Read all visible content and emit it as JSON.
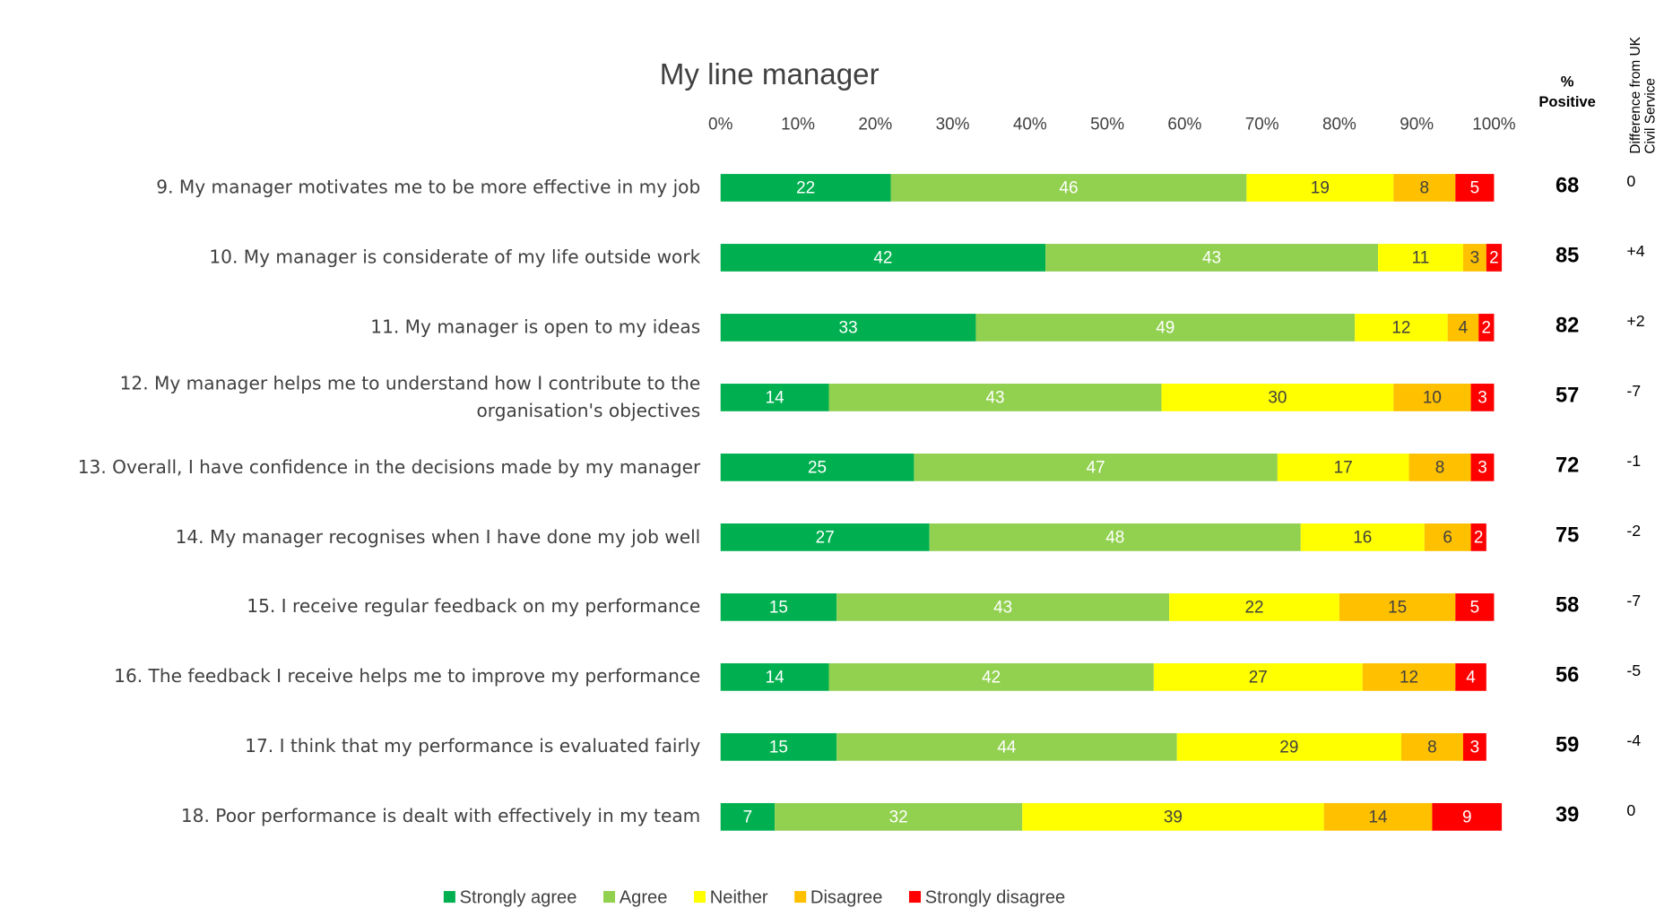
{
  "chart_data": {
    "type": "stacked_bar_horizontal",
    "title": "My line manager",
    "categories": [
      "9. My manager motivates me to be more effective in my job",
      "10. My manager is considerate of my life outside work",
      "11. My manager is open to my ideas",
      "12. My manager helps me to understand how I contribute to the organisation's objectives",
      "13. Overall, I have confidence in the decisions made by my manager",
      "14. My manager recognises when I have done my job well",
      "15. I receive regular feedback on my performance",
      "16. The feedback I receive helps me to improve my performance",
      "17. I think that my performance is evaluated fairly",
      "18. Poor performance is dealt with effectively in my team"
    ],
    "series": [
      {
        "name": "Strongly agree",
        "color": "#00b050",
        "label_color": "#ffffff",
        "values": [
          22,
          42,
          33,
          14,
          25,
          27,
          15,
          14,
          15,
          7
        ]
      },
      {
        "name": "Agree",
        "color": "#92d050",
        "label_color": "#ffffff",
        "values": [
          46,
          43,
          49,
          43,
          47,
          48,
          43,
          42,
          44,
          32
        ]
      },
      {
        "name": "Neither",
        "color": "#ffff00",
        "label_color": "#404040",
        "values": [
          19,
          11,
          12,
          30,
          17,
          16,
          22,
          27,
          29,
          39
        ]
      },
      {
        "name": "Disagree",
        "color": "#ffc000",
        "label_color": "#404040",
        "values": [
          8,
          3,
          4,
          10,
          8,
          6,
          15,
          12,
          8,
          14
        ]
      },
      {
        "name": "Strongly disagree",
        "color": "#ff0000",
        "label_color": "#ffffff",
        "values": [
          5,
          2,
          2,
          3,
          3,
          2,
          5,
          4,
          3,
          9
        ]
      }
    ],
    "xlim": [
      0,
      100
    ],
    "xticks": [
      {
        "value": 0,
        "label": "0%"
      },
      {
        "value": 10,
        "label": "10%"
      },
      {
        "value": 20,
        "label": "20%"
      },
      {
        "value": 30,
        "label": "30%"
      },
      {
        "value": 40,
        "label": "40%"
      },
      {
        "value": 50,
        "label": "50%"
      },
      {
        "value": 60,
        "label": "60%"
      },
      {
        "value": 70,
        "label": "70%"
      },
      {
        "value": 80,
        "label": "80%"
      },
      {
        "value": 90,
        "label": "90%"
      },
      {
        "value": 100,
        "label": "100%"
      }
    ],
    "positive_header": [
      "%",
      "Positive"
    ],
    "positive": [
      68,
      85,
      82,
      57,
      72,
      75,
      58,
      56,
      59,
      39
    ],
    "difference_header": [
      "Difference from UK",
      "Civil Service"
    ],
    "difference": [
      "0",
      "+4",
      "+2",
      "-7",
      "-1",
      "-2",
      "-7",
      "-5",
      "-4",
      "0"
    ],
    "legend": "bottom"
  }
}
